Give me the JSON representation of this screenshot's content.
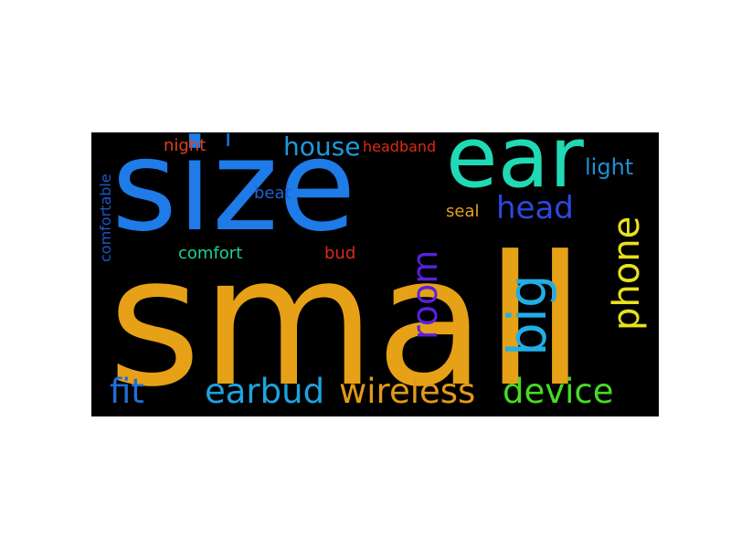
{
  "word_cloud": {
    "background": "#000000",
    "words": [
      {
        "text": "small",
        "color": "#E6A117"
      },
      {
        "text": "size",
        "color": "#1E7BE8"
      },
      {
        "text": "ear",
        "color": "#20D9B5"
      },
      {
        "text": "big",
        "color": "#21AEE6"
      },
      {
        "text": "phone",
        "color": "#E8E11A"
      },
      {
        "text": "room",
        "color": "#5A20E0"
      },
      {
        "text": "head",
        "color": "#2C48E0"
      },
      {
        "text": "device",
        "color": "#47DB23"
      },
      {
        "text": "wireless",
        "color": "#E39A18"
      },
      {
        "text": "earbud",
        "color": "#1FA3DE"
      },
      {
        "text": "fit",
        "color": "#1E6FD9"
      },
      {
        "text": "house",
        "color": "#1E9ADB"
      },
      {
        "text": "light",
        "color": "#1F8FD6"
      },
      {
        "text": "night",
        "color": "#E0401A"
      },
      {
        "text": "headband",
        "color": "#DE2A10"
      },
      {
        "text": "seal",
        "color": "#E3A020"
      },
      {
        "text": "beat",
        "color": "#1E63D4"
      },
      {
        "text": "comfort",
        "color": "#1FCF9A"
      },
      {
        "text": "bud",
        "color": "#DE2A18"
      },
      {
        "text": "comfortable",
        "color": "#1E58C8"
      },
      {
        "text": "i",
        "color": "#1E7BE8"
      }
    ]
  }
}
